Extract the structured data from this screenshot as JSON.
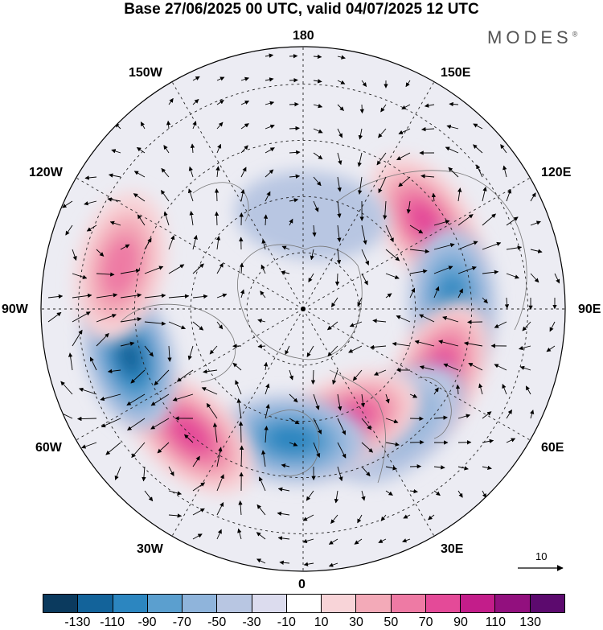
{
  "header": {
    "title": "Base 27/06/2025 00 UTC, valid 04/07/2025 12 UTC",
    "brand": "MODES",
    "brand_mark": "®"
  },
  "map": {
    "projection": "north polar stereographic",
    "longitude_labels": [
      "180",
      "150E",
      "120E",
      "90E",
      "60E",
      "30E",
      "0",
      "30W",
      "60W",
      "90W",
      "120W",
      "150W"
    ],
    "reference_vector": {
      "label": "10"
    },
    "anomaly_centers": [
      {
        "sign": "positive",
        "lat": 50,
        "lon": 125,
        "value": 90
      },
      {
        "sign": "negative",
        "lat": 50,
        "lon": 92,
        "value": -90
      },
      {
        "sign": "positive",
        "lat": 50,
        "lon": 65,
        "value": 90
      },
      {
        "sign": "negative",
        "lat": 50,
        "lon": 40,
        "value": -50
      },
      {
        "sign": "positive",
        "lat": 58,
        "lon": 22,
        "value": 90
      },
      {
        "sign": "negative",
        "lat": 55,
        "lon": -5,
        "value": -90
      },
      {
        "sign": "positive",
        "lat": 45,
        "lon": -42,
        "value": 90
      },
      {
        "sign": "negative",
        "lat": 42,
        "lon": -75,
        "value": -110
      },
      {
        "sign": "positive",
        "lat": 40,
        "lon": -103,
        "value": 70
      },
      {
        "sign": "negative",
        "lat": 65,
        "lon": 175,
        "value": -30
      }
    ]
  },
  "colorbar": {
    "tick_labels": [
      "-130",
      "-110",
      "-90",
      "-70",
      "-50",
      "-30",
      "-10",
      "10",
      "30",
      "50",
      "70",
      "90",
      "110",
      "130"
    ],
    "colors": [
      "#0b3a5e",
      "#13639a",
      "#2c86c0",
      "#5b9fcf",
      "#8fb4db",
      "#b8c6e2",
      "#dcdcee",
      "#ffffff",
      "#f8d4d8",
      "#f3aab8",
      "#ee7aa4",
      "#e44a98",
      "#c31d8a",
      "#92107e",
      "#5c0a6e"
    ]
  }
}
